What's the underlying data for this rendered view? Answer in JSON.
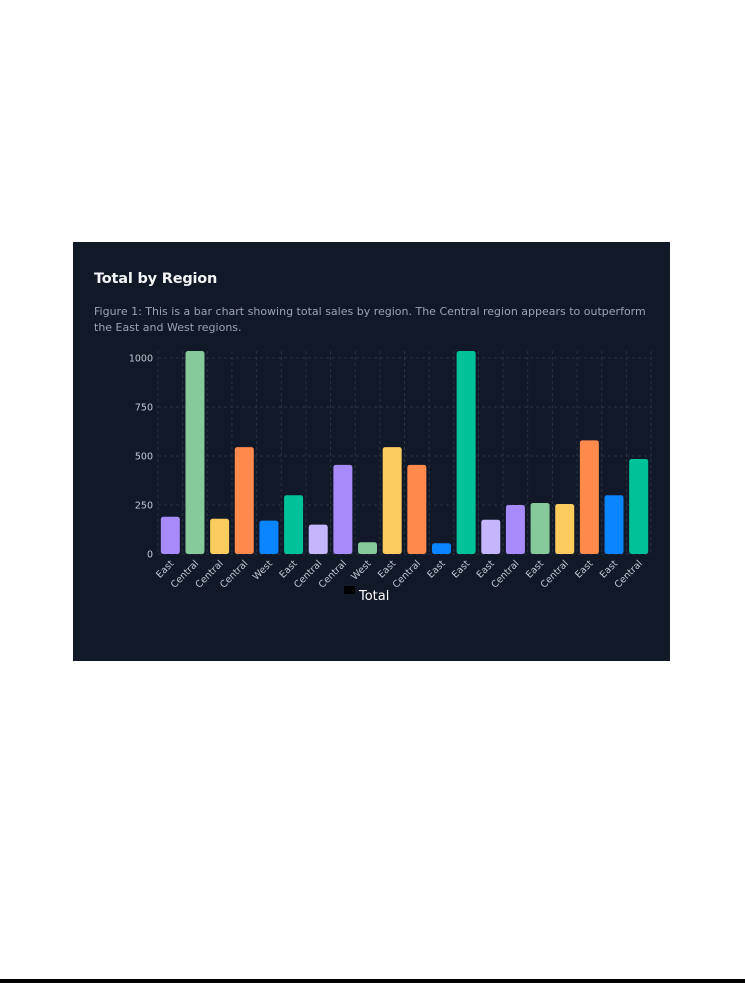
{
  "card": {
    "title": "Total by Region",
    "description": "Figure 1: This is a bar chart showing total sales by region. The Central region appears to outperform the East and West regions."
  },
  "chart_data": {
    "type": "bar",
    "title": "Total by Region",
    "xlabel": "",
    "ylabel": "",
    "categories": [
      "East",
      "Central",
      "Central",
      "Central",
      "West",
      "East",
      "Central",
      "Central",
      "West",
      "East",
      "Central",
      "East",
      "East",
      "East",
      "Central",
      "East",
      "Central",
      "East",
      "East",
      "Central"
    ],
    "series": [
      {
        "name": "Total",
        "values": [
          190,
          1040,
          180,
          545,
          170,
          300,
          150,
          455,
          60,
          545,
          455,
          55,
          1040,
          175,
          250,
          260,
          255,
          580,
          300,
          485
        ]
      }
    ],
    "ylim": [
      0,
      1000
    ],
    "yticks": [
      0,
      250,
      500,
      750,
      1000
    ],
    "grid": true,
    "legend_placement": "bottom",
    "bar_colors": [
      "#a78bfa",
      "#86c99a",
      "#fccb5e",
      "#ff8a4c",
      "#0a84ff",
      "#00c29a",
      "#c4b5fd",
      "#a78bfa",
      "#86c99a",
      "#fccb5e",
      "#ff8a4c",
      "#0a84ff",
      "#00c29a",
      "#c4b5fd",
      "#a78bfa",
      "#86c99a",
      "#fccb5e",
      "#ff8a4c",
      "#0a84ff",
      "#00c29a"
    ],
    "legend_swatch_color": "#000000"
  },
  "colors": {
    "card_background": "#111827",
    "grid": "#2a3444",
    "tick_text": "#c4c9d2",
    "legend_text": "#ffffff"
  }
}
